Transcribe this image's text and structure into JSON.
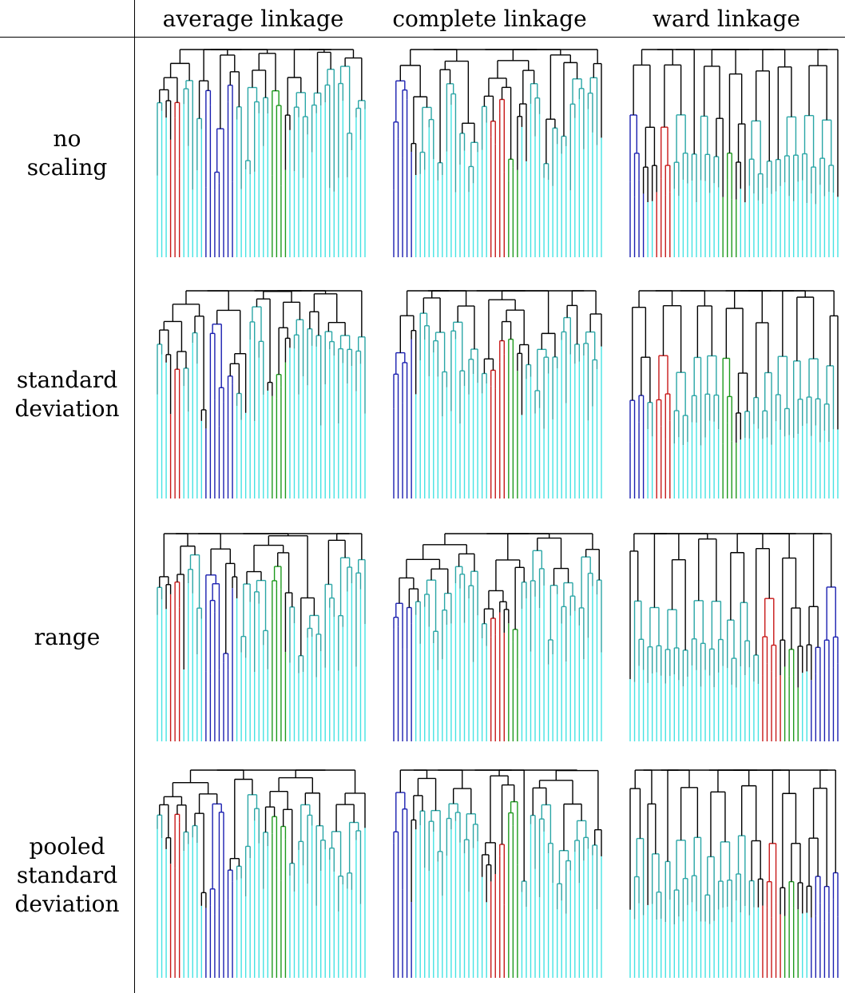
{
  "columns": [
    "average linkage",
    "complete linkage",
    "ward linkage"
  ],
  "rows": [
    {
      "lines": [
        "no",
        "scaling"
      ]
    },
    {
      "lines": [
        "standard",
        "deviation"
      ]
    },
    {
      "lines": [
        "range"
      ]
    },
    {
      "lines": [
        "pooled",
        "standard",
        "deviation"
      ]
    }
  ],
  "colors": {
    "cyan": "#44e3e3",
    "teal": "#2aa6a6",
    "blue": "#1a1fb0",
    "red": "#c81818",
    "green": "#1d9a1d",
    "link": "#000000"
  },
  "leaf_count": 48
}
